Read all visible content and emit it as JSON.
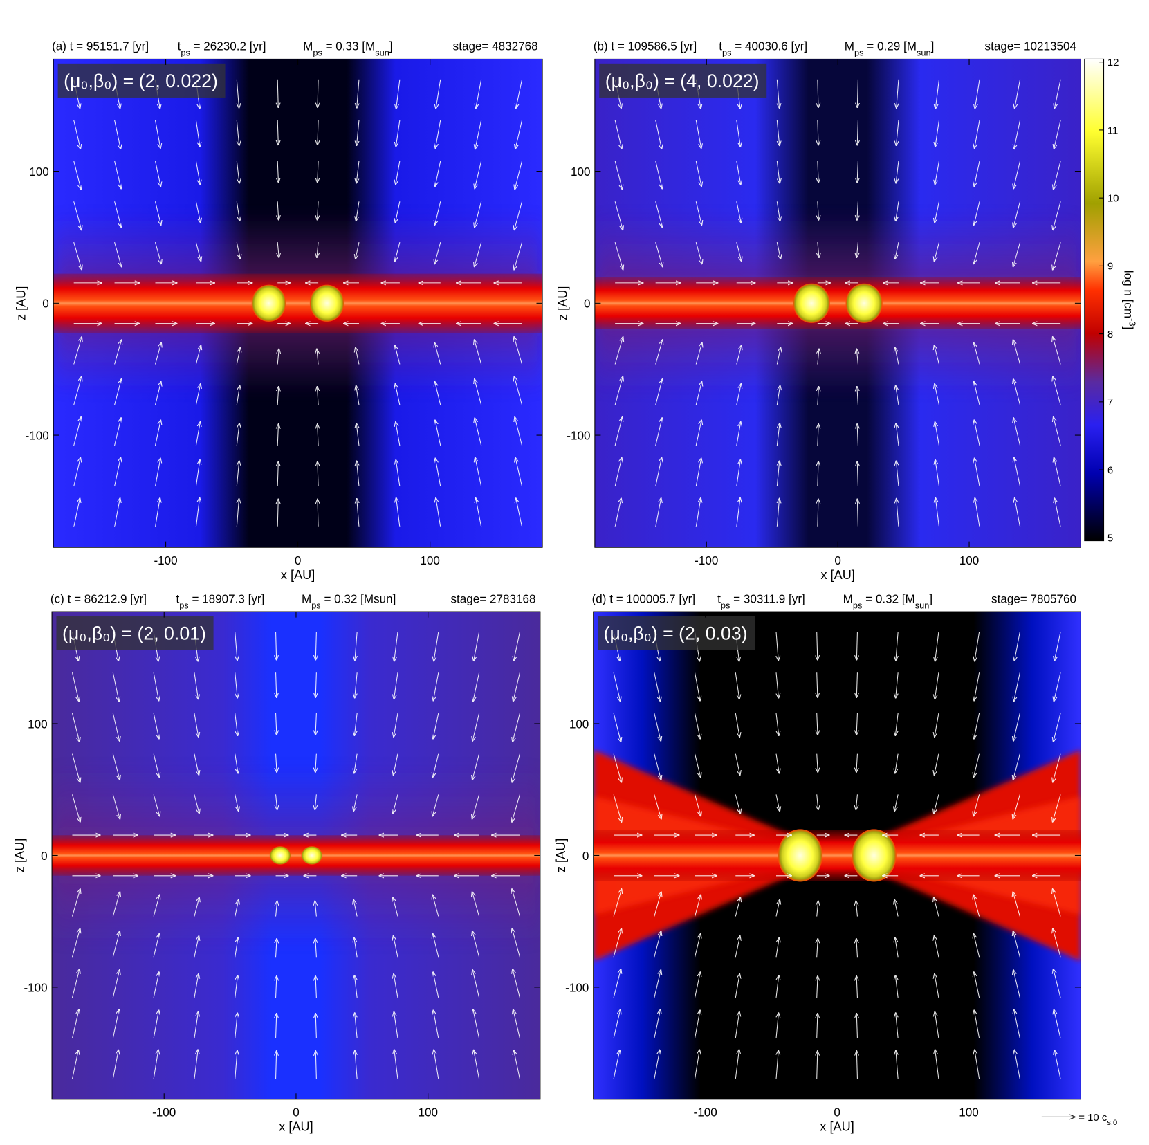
{
  "chart_data": [
    {
      "type": "heatmap",
      "header": [
        [
          {
            "text": "(a) t = 95151.7 [yr]"
          }
        ],
        [
          {
            "text": "t"
          },
          {
            "text": "ps",
            "sub": true
          },
          {
            "text": " = 26230.2 [yr]"
          }
        ],
        [
          {
            "text": "M"
          },
          {
            "text": "ps",
            "sub": true
          },
          {
            "text": " = 0.33 [M"
          },
          {
            "text": "sun",
            "sub": true
          },
          {
            "text": "]"
          }
        ],
        [
          {
            "text": "stage= 4832768"
          }
        ]
      ],
      "annotation": "(μ₀,β₀) = (2, 0.022)",
      "xlabel": "x [AU]",
      "ylabel": "z [AU]",
      "xlim": [
        -185,
        185
      ],
      "ylim": [
        -185,
        185
      ],
      "xticks": [
        -100,
        0,
        100
      ],
      "yticks": [
        -100,
        0,
        100
      ]
    },
    {
      "type": "heatmap",
      "header": [
        [
          {
            "text": "(b) t = 109586.5 [yr]"
          }
        ],
        [
          {
            "text": "t"
          },
          {
            "text": "ps",
            "sub": true
          },
          {
            "text": " = 40030.6 [yr]"
          }
        ],
        [
          {
            "text": "M"
          },
          {
            "text": "ps",
            "sub": true
          },
          {
            "text": " = 0.29 [M"
          },
          {
            "text": "sun",
            "sub": true
          },
          {
            "text": "]"
          }
        ],
        [
          {
            "text": "stage= 10213504"
          }
        ]
      ],
      "annotation": "(μ₀,β₀) = (4, 0.022)",
      "xlabel": "x [AU]",
      "ylabel": "z [AU]",
      "xlim": [
        -185,
        185
      ],
      "ylim": [
        -185,
        185
      ],
      "xticks": [
        -100,
        0,
        100
      ],
      "yticks": [
        -100,
        0,
        100
      ]
    },
    {
      "type": "heatmap",
      "header": [
        [
          {
            "text": "(c) t = 86212.9 [yr]"
          }
        ],
        [
          {
            "text": "t"
          },
          {
            "text": "ps",
            "sub": true
          },
          {
            "text": " = 18907.3 [yr]"
          }
        ],
        [
          {
            "text": "M"
          },
          {
            "text": "ps",
            "sub": true
          },
          {
            "text": " = 0.32 [Msun]"
          }
        ],
        [
          {
            "text": "stage= 2783168"
          }
        ]
      ],
      "annotation": "(μ₀,β₀) = (2, 0.01)",
      "xlabel": "x [AU]",
      "ylabel": "z [AU]",
      "xlim": [
        -185,
        185
      ],
      "ylim": [
        -185,
        185
      ],
      "xticks": [
        -100,
        0,
        100
      ],
      "yticks": [
        -100,
        0,
        100
      ]
    },
    {
      "type": "heatmap",
      "header": [
        [
          {
            "text": "(d) t = 100005.7 [yr]"
          }
        ],
        [
          {
            "text": "t"
          },
          {
            "text": "ps",
            "sub": true
          },
          {
            "text": " = 30311.9 [yr]"
          }
        ],
        [
          {
            "text": "M"
          },
          {
            "text": "ps",
            "sub": true
          },
          {
            "text": " = 0.32 [M"
          },
          {
            "text": "sun",
            "sub": true
          },
          {
            "text": "]"
          }
        ],
        [
          {
            "text": "stage= 7805760"
          }
        ]
      ],
      "annotation": "(μ₀,β₀) = (2, 0.03)",
      "xlabel": "x [AU]",
      "ylabel": "z [AU]",
      "xlim": [
        -185,
        185
      ],
      "ylim": [
        -185,
        185
      ],
      "xticks": [
        -100,
        0,
        100
      ],
      "yticks": [
        -100,
        0,
        100
      ]
    }
  ],
  "colorbar": {
    "label": [
      {
        "text": "log n [cm"
      },
      {
        "text": "-3",
        "sup": true
      },
      {
        "text": "]"
      }
    ],
    "lim": [
      5,
      12
    ],
    "ticks": [
      5,
      6,
      7,
      8,
      9,
      10,
      11,
      12
    ]
  },
  "vector_key": [
    {
      "text": "= 10 c"
    },
    {
      "text": "s,0",
      "sub": true
    }
  ]
}
